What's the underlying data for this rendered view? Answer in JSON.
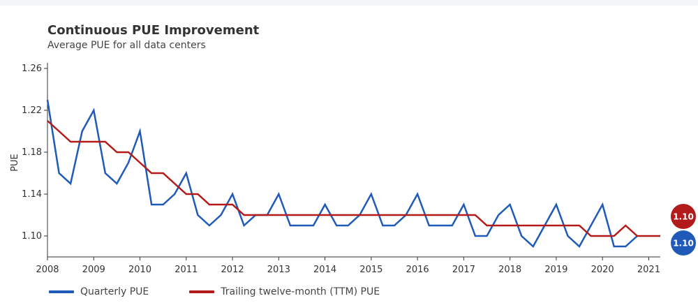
{
  "chart_data": {
    "type": "line",
    "title": "Continuous PUE Improvement",
    "subtitle": "Average PUE for all data centers",
    "ylabel": "PUE",
    "xlabel": "",
    "ylim": [
      1.08,
      1.26
    ],
    "yticks": [
      1.1,
      1.14,
      1.18,
      1.22,
      1.26
    ],
    "ytick_labels": [
      "1.10",
      "1.14",
      "1.18",
      "1.22",
      "1.26"
    ],
    "xlim": [
      2008,
      2021.25
    ],
    "xticks": [
      2008,
      2009,
      2010,
      2011,
      2012,
      2013,
      2014,
      2015,
      2016,
      2017,
      2018,
      2019,
      2020,
      2021
    ],
    "xtick_labels": [
      "2008",
      "2009",
      "2010",
      "2011",
      "2012",
      "2013",
      "2014",
      "2015",
      "2016",
      "2017",
      "2018",
      "2019",
      "2020",
      "2021"
    ],
    "x": [
      2008.0,
      2008.25,
      2008.5,
      2008.75,
      2009.0,
      2009.25,
      2009.5,
      2009.75,
      2010.0,
      2010.25,
      2010.5,
      2010.75,
      2011.0,
      2011.25,
      2011.5,
      2011.75,
      2012.0,
      2012.25,
      2012.5,
      2012.75,
      2013.0,
      2013.25,
      2013.5,
      2013.75,
      2014.0,
      2014.25,
      2014.5,
      2014.75,
      2015.0,
      2015.25,
      2015.5,
      2015.75,
      2016.0,
      2016.25,
      2016.5,
      2016.75,
      2017.0,
      2017.25,
      2017.5,
      2017.75,
      2018.0,
      2018.25,
      2018.5,
      2018.75,
      2019.0,
      2019.25,
      2019.5,
      2019.75,
      2020.0,
      2020.25,
      2020.5,
      2020.75,
      2021.0,
      2021.25
    ],
    "series": [
      {
        "name": "Quarterly PUE",
        "color": "#1f5ab8",
        "values": [
          1.23,
          1.16,
          1.15,
          1.2,
          1.22,
          1.16,
          1.15,
          1.17,
          1.2,
          1.13,
          1.13,
          1.14,
          1.16,
          1.12,
          1.11,
          1.12,
          1.14,
          1.11,
          1.12,
          1.12,
          1.14,
          1.11,
          1.11,
          1.11,
          1.13,
          1.11,
          1.11,
          1.12,
          1.14,
          1.11,
          1.11,
          1.12,
          1.14,
          1.11,
          1.11,
          1.11,
          1.13,
          1.1,
          1.1,
          1.12,
          1.13,
          1.1,
          1.09,
          1.11,
          1.13,
          1.1,
          1.09,
          1.11,
          1.13,
          1.09,
          1.09,
          1.1,
          null,
          null
        ],
        "end_label": "1.10"
      },
      {
        "name": "Trailing twelve-month (TTM) PUE",
        "color": "#b31b1b",
        "values": [
          1.21,
          1.2,
          1.19,
          1.19,
          1.19,
          1.19,
          1.18,
          1.18,
          1.17,
          1.16,
          1.16,
          1.15,
          1.14,
          1.14,
          1.13,
          1.13,
          1.13,
          1.12,
          1.12,
          1.12,
          1.12,
          1.12,
          1.12,
          1.12,
          1.12,
          1.12,
          1.12,
          1.12,
          1.12,
          1.12,
          1.12,
          1.12,
          1.12,
          1.12,
          1.12,
          1.12,
          1.12,
          1.12,
          1.11,
          1.11,
          1.11,
          1.11,
          1.11,
          1.11,
          1.11,
          1.11,
          1.11,
          1.1,
          1.1,
          1.1,
          1.11,
          1.1,
          1.1,
          1.1
        ],
        "end_label": "1.10"
      }
    ],
    "grid": false,
    "legend": "bottom-left"
  }
}
